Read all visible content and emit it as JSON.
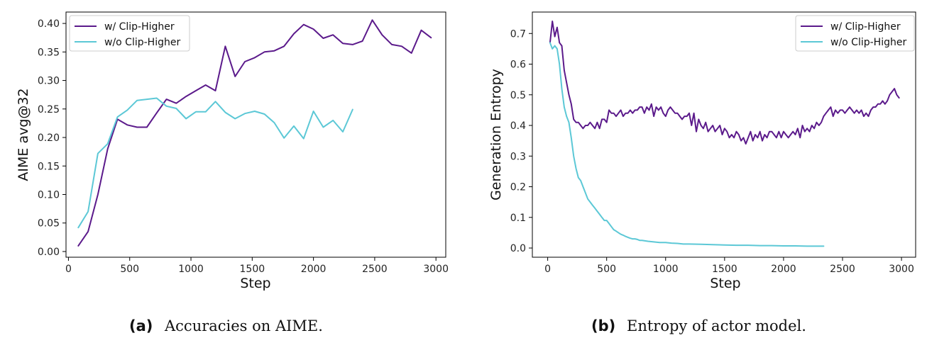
{
  "colors": {
    "with": "#5b1a8b",
    "without": "#5cc8d6"
  },
  "captions": [
    {
      "letter": "(a)",
      "text": "Accuracies on AIME."
    },
    {
      "letter": "(b)",
      "text": "Entropy of actor model."
    }
  ],
  "chart_data": [
    {
      "type": "line",
      "title": "",
      "xlabel": "Step",
      "ylabel": "AIME avg@32",
      "xlim": [
        -20,
        3080
      ],
      "ylim": [
        -0.01,
        0.42
      ],
      "xticks": [
        0,
        500,
        1000,
        1500,
        2000,
        2500,
        3000
      ],
      "yticks": [
        0.0,
        0.05,
        0.1,
        0.15,
        0.2,
        0.25,
        0.3,
        0.35,
        0.4
      ],
      "ytick_labels": [
        "0.00",
        "0.05",
        "0.10",
        "0.15",
        "0.20",
        "0.25",
        "0.30",
        "0.35",
        "0.40"
      ],
      "legend": "top-left",
      "grid": false,
      "series": [
        {
          "name": "w/ Clip-Higher",
          "color": "#5b1a8b",
          "x": [
            80,
            160,
            240,
            320,
            400,
            480,
            560,
            640,
            720,
            800,
            880,
            960,
            1040,
            1120,
            1200,
            1280,
            1360,
            1440,
            1520,
            1600,
            1680,
            1760,
            1840,
            1920,
            2000,
            2080,
            2160,
            2240,
            2320,
            2400,
            2480,
            2560,
            2640,
            2720,
            2800,
            2880,
            2960
          ],
          "y": [
            0.01,
            0.035,
            0.1,
            0.18,
            0.232,
            0.222,
            0.218,
            0.218,
            0.243,
            0.267,
            0.26,
            0.272,
            0.282,
            0.292,
            0.282,
            0.36,
            0.307,
            0.333,
            0.34,
            0.35,
            0.352,
            0.36,
            0.382,
            0.398,
            0.39,
            0.374,
            0.38,
            0.365,
            0.363,
            0.369,
            0.406,
            0.38,
            0.363,
            0.36,
            0.348,
            0.388,
            0.375
          ]
        },
        {
          "name": "w/o Clip-Higher",
          "color": "#5cc8d6",
          "x": [
            80,
            160,
            240,
            320,
            400,
            480,
            560,
            640,
            720,
            800,
            880,
            960,
            1040,
            1120,
            1200,
            1280,
            1360,
            1440,
            1520,
            1600,
            1680,
            1760,
            1840,
            1920,
            2000,
            2080,
            2160,
            2240,
            2320
          ],
          "y": [
            0.042,
            0.07,
            0.172,
            0.189,
            0.236,
            0.248,
            0.265,
            0.267,
            0.269,
            0.255,
            0.251,
            0.233,
            0.245,
            0.245,
            0.263,
            0.244,
            0.233,
            0.242,
            0.246,
            0.241,
            0.226,
            0.199,
            0.22,
            0.198,
            0.246,
            0.218,
            0.23,
            0.21,
            0.249
          ]
        }
      ]
    },
    {
      "type": "line",
      "title": "",
      "xlabel": "Step",
      "ylabel": "Generation Entropy",
      "xlim": [
        -130,
        3120
      ],
      "ylim": [
        -0.03,
        0.77
      ],
      "xticks": [
        0,
        500,
        1000,
        1500,
        2000,
        2500,
        3000
      ],
      "yticks": [
        0.0,
        0.1,
        0.2,
        0.3,
        0.4,
        0.5,
        0.6,
        0.7
      ],
      "ytick_labels": [
        "0.0",
        "0.1",
        "0.2",
        "0.3",
        "0.4",
        "0.5",
        "0.6",
        "0.7"
      ],
      "legend": "top-right",
      "grid": false,
      "series": [
        {
          "name": "w/ Clip-Higher",
          "color": "#5b1a8b",
          "x": [
            20,
            40,
            60,
            80,
            100,
            120,
            140,
            160,
            180,
            200,
            220,
            240,
            260,
            280,
            300,
            320,
            340,
            360,
            380,
            400,
            420,
            440,
            460,
            480,
            500,
            520,
            540,
            560,
            580,
            600,
            620,
            640,
            660,
            680,
            700,
            720,
            740,
            760,
            780,
            800,
            820,
            840,
            860,
            880,
            900,
            920,
            940,
            960,
            980,
            1000,
            1020,
            1040,
            1060,
            1080,
            1100,
            1120,
            1140,
            1160,
            1180,
            1200,
            1220,
            1240,
            1260,
            1280,
            1300,
            1320,
            1340,
            1360,
            1380,
            1400,
            1420,
            1440,
            1460,
            1480,
            1500,
            1520,
            1540,
            1560,
            1580,
            1600,
            1620,
            1640,
            1660,
            1680,
            1700,
            1720,
            1740,
            1760,
            1780,
            1800,
            1820,
            1840,
            1860,
            1880,
            1900,
            1920,
            1940,
            1960,
            1980,
            2000,
            2020,
            2040,
            2060,
            2080,
            2100,
            2120,
            2140,
            2160,
            2180,
            2200,
            2220,
            2240,
            2260,
            2280,
            2300,
            2320,
            2340,
            2360,
            2380,
            2400,
            2420,
            2440,
            2460,
            2480,
            2500,
            2520,
            2540,
            2560,
            2580,
            2600,
            2620,
            2640,
            2660,
            2680,
            2700,
            2720,
            2740,
            2760,
            2780,
            2800,
            2820,
            2840,
            2860,
            2880,
            2900,
            2920,
            2940,
            2960,
            2980
          ],
          "y": [
            0.67,
            0.74,
            0.69,
            0.72,
            0.67,
            0.66,
            0.58,
            0.54,
            0.5,
            0.47,
            0.42,
            0.41,
            0.41,
            0.4,
            0.39,
            0.4,
            0.4,
            0.41,
            0.4,
            0.39,
            0.41,
            0.39,
            0.42,
            0.42,
            0.41,
            0.45,
            0.44,
            0.44,
            0.43,
            0.44,
            0.45,
            0.43,
            0.44,
            0.44,
            0.45,
            0.44,
            0.45,
            0.45,
            0.46,
            0.46,
            0.44,
            0.46,
            0.45,
            0.47,
            0.43,
            0.46,
            0.45,
            0.46,
            0.44,
            0.43,
            0.45,
            0.46,
            0.45,
            0.44,
            0.44,
            0.43,
            0.42,
            0.43,
            0.43,
            0.44,
            0.4,
            0.44,
            0.38,
            0.42,
            0.4,
            0.39,
            0.41,
            0.38,
            0.39,
            0.4,
            0.38,
            0.39,
            0.4,
            0.37,
            0.39,
            0.38,
            0.36,
            0.37,
            0.36,
            0.38,
            0.37,
            0.35,
            0.36,
            0.34,
            0.36,
            0.38,
            0.35,
            0.37,
            0.36,
            0.38,
            0.35,
            0.37,
            0.36,
            0.38,
            0.38,
            0.37,
            0.36,
            0.38,
            0.36,
            0.38,
            0.37,
            0.36,
            0.37,
            0.38,
            0.37,
            0.39,
            0.36,
            0.4,
            0.38,
            0.39,
            0.38,
            0.4,
            0.39,
            0.41,
            0.4,
            0.41,
            0.43,
            0.44,
            0.45,
            0.46,
            0.43,
            0.45,
            0.44,
            0.45,
            0.45,
            0.44,
            0.45,
            0.46,
            0.45,
            0.44,
            0.45,
            0.44,
            0.45,
            0.43,
            0.44,
            0.43,
            0.45,
            0.46,
            0.46,
            0.47,
            0.47,
            0.48,
            0.47,
            0.48,
            0.5,
            0.51,
            0.52,
            0.5,
            0.49
          ]
        },
        {
          "name": "w/o Clip-Higher",
          "color": "#5cc8d6",
          "x": [
            20,
            40,
            60,
            80,
            100,
            120,
            140,
            160,
            180,
            200,
            220,
            240,
            260,
            280,
            300,
            320,
            340,
            360,
            380,
            400,
            420,
            440,
            460,
            480,
            500,
            520,
            540,
            560,
            580,
            600,
            620,
            640,
            660,
            680,
            700,
            720,
            740,
            760,
            780,
            800,
            850,
            900,
            950,
            1000,
            1050,
            1100,
            1150,
            1200,
            1300,
            1400,
            1500,
            1600,
            1700,
            1800,
            1900,
            2000,
            2100,
            2200,
            2340
          ],
          "y": [
            0.67,
            0.65,
            0.66,
            0.65,
            0.6,
            0.52,
            0.46,
            0.43,
            0.41,
            0.36,
            0.3,
            0.26,
            0.23,
            0.22,
            0.2,
            0.18,
            0.16,
            0.15,
            0.14,
            0.13,
            0.12,
            0.11,
            0.1,
            0.09,
            0.09,
            0.08,
            0.07,
            0.06,
            0.055,
            0.05,
            0.045,
            0.042,
            0.038,
            0.035,
            0.032,
            0.03,
            0.03,
            0.028,
            0.025,
            0.025,
            0.022,
            0.02,
            0.018,
            0.018,
            0.016,
            0.015,
            0.013,
            0.013,
            0.012,
            0.011,
            0.01,
            0.009,
            0.009,
            0.008,
            0.008,
            0.007,
            0.007,
            0.006,
            0.006
          ]
        }
      ]
    }
  ]
}
